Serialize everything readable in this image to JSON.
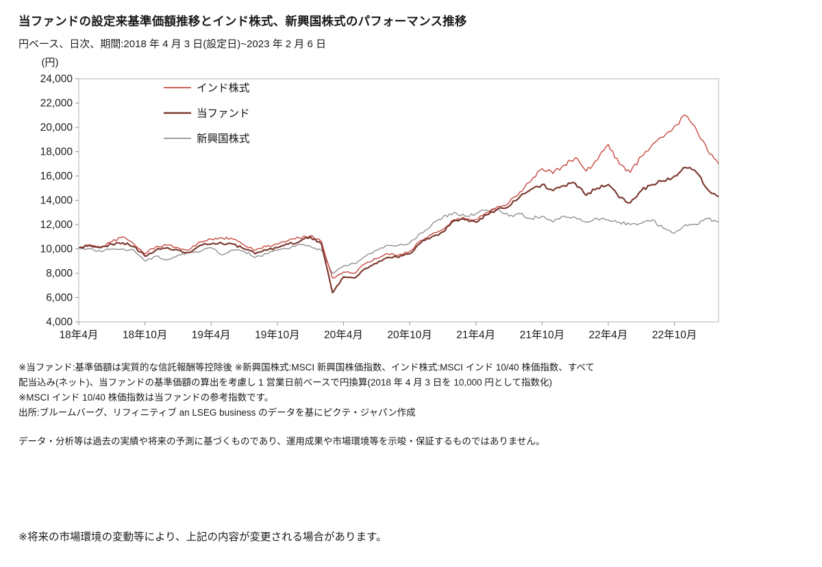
{
  "header": {
    "title": "当ファンドの設定来基準価額推移とインド株式、新興国株式のパフォーマンス推移",
    "subtitle": "円ベース、日次、期間:2018 年 4 月 3 日(設定日)~2023 年 2 月 6 日"
  },
  "chart_data": {
    "type": "line",
    "title": "当ファンドの設定来基準価額推移とインド株式、新興国株式のパフォーマンス推移",
    "ylabel": "(円)",
    "xlabel": "",
    "ylim": [
      4000,
      24000
    ],
    "y_tick_step": 2000,
    "grid": false,
    "legend_position": "top-left-inside",
    "x_note": "monthly sample points from 2018-04 (index 0) to 2023-02 (index 58), original data is daily",
    "n_points": 59,
    "x_ticks": [
      {
        "index": 0,
        "label": "18年4月"
      },
      {
        "index": 6,
        "label": "18年10月"
      },
      {
        "index": 12,
        "label": "19年4月"
      },
      {
        "index": 18,
        "label": "19年10月"
      },
      {
        "index": 24,
        "label": "20年4月"
      },
      {
        "index": 30,
        "label": "20年10月"
      },
      {
        "index": 36,
        "label": "21年4月"
      },
      {
        "index": 42,
        "label": "21年10月"
      },
      {
        "index": 48,
        "label": "22年4月"
      },
      {
        "index": 54,
        "label": "22年10月"
      }
    ],
    "series": [
      {
        "name": "インド株式",
        "color": "#c5463d",
        "width": 1.4,
        "values": [
          10100,
          10350,
          10150,
          10600,
          11000,
          10400,
          9600,
          10200,
          10300,
          10100,
          9900,
          10600,
          10800,
          10900,
          10800,
          10300,
          9900,
          10200,
          10400,
          10700,
          10900,
          11100,
          10600,
          7600,
          8100,
          8000,
          8800,
          9200,
          9600,
          9500,
          9800,
          10700,
          11200,
          11600,
          12400,
          12500,
          12400,
          13000,
          13500,
          13800,
          14700,
          15600,
          16600,
          16200,
          16900,
          17500,
          16400,
          17300,
          18600,
          17000,
          16300,
          17600,
          18600,
          19200,
          20100,
          21000,
          19800,
          18100,
          17000
        ]
      },
      {
        "name": "当ファンド",
        "color": "#7b3a30",
        "width": 2.2,
        "values": [
          10100,
          10300,
          10100,
          10400,
          10500,
          10200,
          9400,
          9900,
          10100,
          9900,
          9700,
          10300,
          10400,
          10450,
          10400,
          10000,
          9600,
          9900,
          10100,
          10400,
          10600,
          11000,
          10400,
          6400,
          7700,
          7600,
          8400,
          8800,
          9300,
          9300,
          9600,
          10500,
          11000,
          11400,
          12300,
          12400,
          12200,
          12800,
          13300,
          13500,
          14300,
          14900,
          15300,
          14800,
          15200,
          15400,
          14400,
          15000,
          15300,
          14200,
          13800,
          14800,
          15300,
          15600,
          16000,
          16700,
          16300,
          14900,
          14300
        ]
      },
      {
        "name": "新興国株式",
        "color": "#8f8f8f",
        "width": 1.4,
        "values": [
          10100,
          10000,
          9800,
          10000,
          10000,
          9900,
          9000,
          9400,
          9100,
          9500,
          9700,
          9800,
          10100,
          9500,
          9900,
          9800,
          9300,
          9600,
          9900,
          10000,
          10400,
          10200,
          9900,
          8000,
          8600,
          8800,
          9400,
          9900,
          10300,
          10300,
          10500,
          11300,
          12000,
          12600,
          13000,
          12700,
          12900,
          13200,
          13300,
          12700,
          12900,
          12500,
          12700,
          12200,
          12700,
          12600,
          12200,
          12500,
          12400,
          12200,
          12000,
          12100,
          12400,
          11700,
          11300,
          12000,
          12000,
          12500,
          12200
        ]
      }
    ]
  },
  "footnotes": {
    "lines": [
      "※当ファンド:基準価額は実質的な信託報酬等控除後 ※新興国株式:MSCI 新興国株価指数、インド株式:MSCI インド 10/40 株価指数、すべて",
      "配当込み(ネット)、当ファンドの基準価額の算出を考慮し 1 営業日前ベースで円換算(2018 年 4 月 3 日を 10,000 円として指数化)",
      "※MSCI インド 10/40 株価指数は当ファンドの参考指数です。",
      "出所:ブルームバーグ、リフィニティブ  an LSEG business のデータを基にピクテ・ジャパン作成"
    ]
  },
  "disclaimer": "データ・分析等は過去の実績や将来の予測に基づくものであり、運用成果や市場環境等を示唆・保証するものではありません。",
  "bottom_note": "※将来の市場環境の変動等により、上記の内容が変更される場合があります。"
}
